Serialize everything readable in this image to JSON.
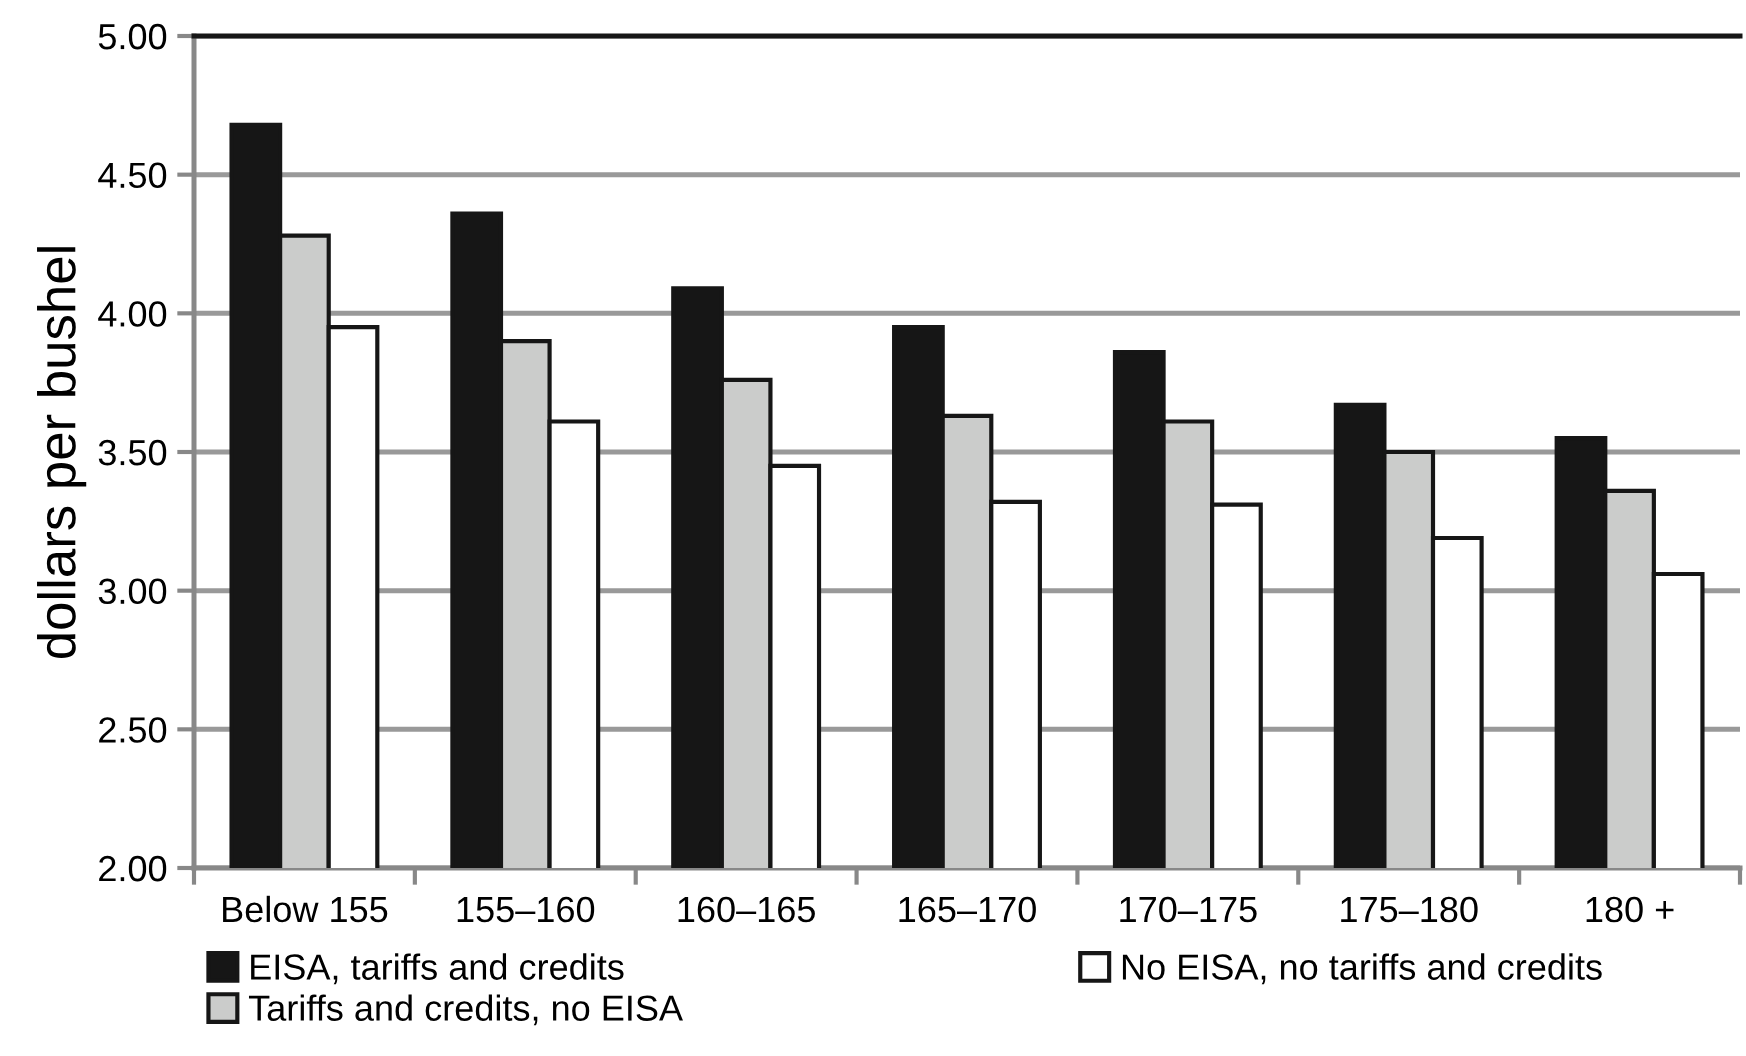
{
  "chart_data": {
    "type": "bar",
    "ylabel": "dollars per bushel",
    "categories": [
      "Below 155",
      "155–160",
      "160–165",
      "165–170",
      "170–175",
      "175–180",
      "180 +"
    ],
    "series": [
      {
        "name": "EISA, tariffs and credits",
        "color": "#161616",
        "values": [
          4.68,
          4.36,
          4.09,
          3.95,
          3.86,
          3.67,
          3.55
        ]
      },
      {
        "name": "Tariffs and credits, no EISA",
        "color": "#cbcccb",
        "values": [
          4.28,
          3.9,
          3.76,
          3.63,
          3.61,
          3.5,
          3.36
        ]
      },
      {
        "name": "No EISA, no tariffs and credits",
        "color": "#ffffff",
        "values": [
          3.95,
          3.61,
          3.45,
          3.32,
          3.31,
          3.19,
          3.06
        ]
      }
    ],
    "ylim": [
      2.0,
      5.0
    ],
    "yticks": [
      {
        "value": 2.0,
        "label": "2.00"
      },
      {
        "value": 2.5,
        "label": "2.50"
      },
      {
        "value": 3.0,
        "label": "3.00"
      },
      {
        "value": 3.5,
        "label": "3.50"
      },
      {
        "value": 4.0,
        "label": "4.00"
      },
      {
        "value": 4.5,
        "label": "4.50"
      },
      {
        "value": 5.0,
        "label": "5.00"
      }
    ],
    "grid": "y",
    "legend": "bottom"
  }
}
